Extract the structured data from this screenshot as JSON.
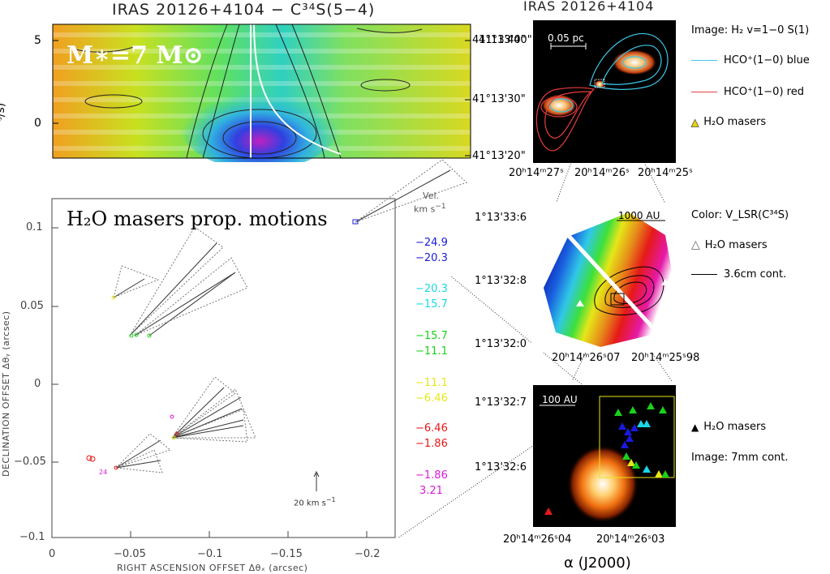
{
  "pv": {
    "title": "IRAS 20126+4104 − C³⁴S(5−4)",
    "mass_label": "M∗=7 M⊙",
    "y_ticks": [
      "5",
      "0"
    ],
    "y_label": "ᵑ/s)",
    "dec_ticks": [
      "41°13'40\"",
      "41°13'30\"",
      "41°13'20\""
    ]
  },
  "propmotion": {
    "heading": "H₂O masers prop. motions",
    "vel_header": "Vel.",
    "vel_unit": "km s",
    "vel_unit_exp": "−1",
    "vel_ranges": [
      {
        "hi": "−24.9",
        "lo": "−20.3",
        "color": "#1a1adc"
      },
      {
        "hi": "−20.3",
        "lo": "−15.7",
        "color": "#19d7e6"
      },
      {
        "hi": "−15.7",
        "lo": "−11.1",
        "color": "#19d219"
      },
      {
        "hi": "−11.1",
        "lo": "−6.46",
        "color": "#e6e619"
      },
      {
        "hi": "−6.46",
        "lo": "−1.86",
        "color": "#e61919"
      },
      {
        "hi": "−1.86",
        "lo": "3.21",
        "color": "#dc19dc"
      }
    ],
    "scale_label": "20 km s",
    "scale_exp": "−1",
    "label_24": "24",
    "y_ticks": [
      "0.1",
      "0.05",
      "0",
      "−0.05",
      "−0.1"
    ],
    "x_ticks": [
      "0",
      "−0.05",
      "−0.1",
      "−0.15",
      "−0.2"
    ],
    "x_label": "RIGHT ASCENSION OFFSET Δθₓ (arcsec)",
    "y_label": "DECLINATION OFFSET Δθᵧ (arcsec)"
  },
  "top_right": {
    "title": "IRAS 20126+4104",
    "scale_bar": "0.05 pc",
    "dec_ticks": [
      "41°13'40\"",
      "41°13'30\"",
      "41°13'20\""
    ],
    "ra_ticks": [
      "20ʰ14ᵐ27ˢ",
      "20ʰ14ᵐ26ˢ",
      "20ʰ14ᵐ25ˢ"
    ],
    "legend": [
      {
        "text": "Image: H₂ v=1−0 S(1)",
        "kind": "text"
      },
      {
        "text": "HCO⁺(1−0) blue",
        "kind": "line",
        "color": "#3cc8e6"
      },
      {
        "text": "HCO⁺(1−0) red",
        "kind": "line",
        "color": "#e63c3c"
      },
      {
        "text": "H₂O masers",
        "kind": "triangle",
        "color": "#e6d219"
      }
    ]
  },
  "middle_right": {
    "scale_bar": "1000 AU",
    "dec_ticks": [
      "1°13'33:6",
      "1°13'32:8",
      "1°13'32:0"
    ],
    "ra_ticks": [
      "20ʰ14ᵐ26ˢ07",
      "20ʰ14ᵐ25ˢ98"
    ],
    "legend": [
      {
        "text": "Color: V_LSR(C³⁴S)",
        "kind": "text"
      },
      {
        "text": "H₂O masers",
        "kind": "open-triangle"
      },
      {
        "text": "3.6cm cont.",
        "kind": "line",
        "color": "#000000"
      }
    ]
  },
  "bottom_right": {
    "scale_bar": "100 AU",
    "dec_ticks": [
      "1°13'32:7",
      "1°13'32:6"
    ],
    "ra_ticks": [
      "20ʰ14ᵐ26ˢ04",
      "20ʰ14ᵐ26ˢ03"
    ],
    "xlabel": "α (J2000)",
    "legend": [
      {
        "text": "H₂O masers",
        "kind": "filled-triangle"
      },
      {
        "text": "Image: 7mm cont.",
        "kind": "text"
      }
    ]
  }
}
